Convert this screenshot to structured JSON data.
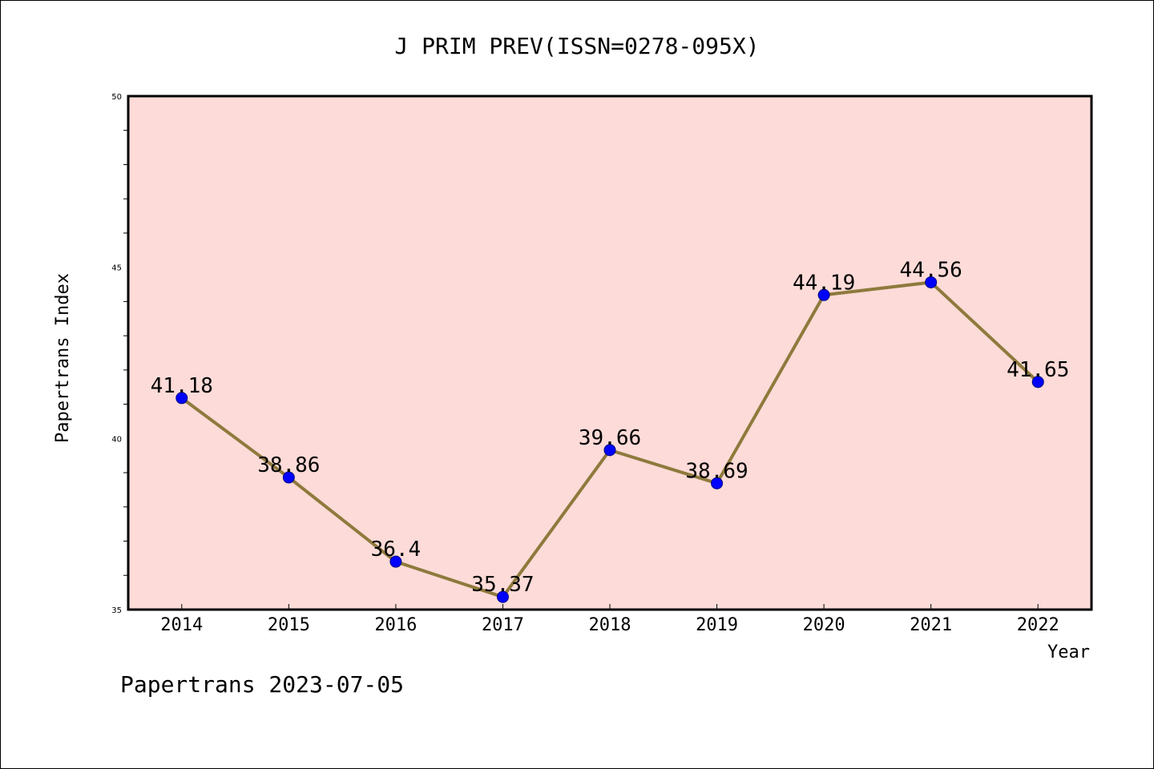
{
  "chart_data": {
    "type": "line",
    "title": "J PRIM PREV(ISSN=0278-095X)",
    "xlabel": "Year",
    "ylabel": "Papertrans Index",
    "categories": [
      "2014",
      "2015",
      "2016",
      "2017",
      "2018",
      "2019",
      "2020",
      "2021",
      "2022"
    ],
    "series": [
      {
        "values": [
          41.18,
          38.86,
          36.4,
          35.37,
          39.66,
          38.69,
          44.19,
          44.56,
          41.65
        ],
        "labels": [
          "41.18",
          "38.86",
          "36.4",
          "35.37",
          "39.66",
          "38.69",
          "44.19",
          "44.56",
          "41.65"
        ]
      }
    ],
    "ylim": [
      35,
      50
    ],
    "y_major_ticks": [
      "35",
      "40",
      "45",
      "50"
    ],
    "y_minor_tick_step": 1,
    "grid": false,
    "legend": "none",
    "colors": {
      "plot_background": "#fddbd8",
      "line": "#8e7a3c",
      "marker_fill": "#0000ff",
      "marker_edge": "#000080",
      "frame": "#000000"
    }
  },
  "footer": "Papertrans 2023-07-05"
}
